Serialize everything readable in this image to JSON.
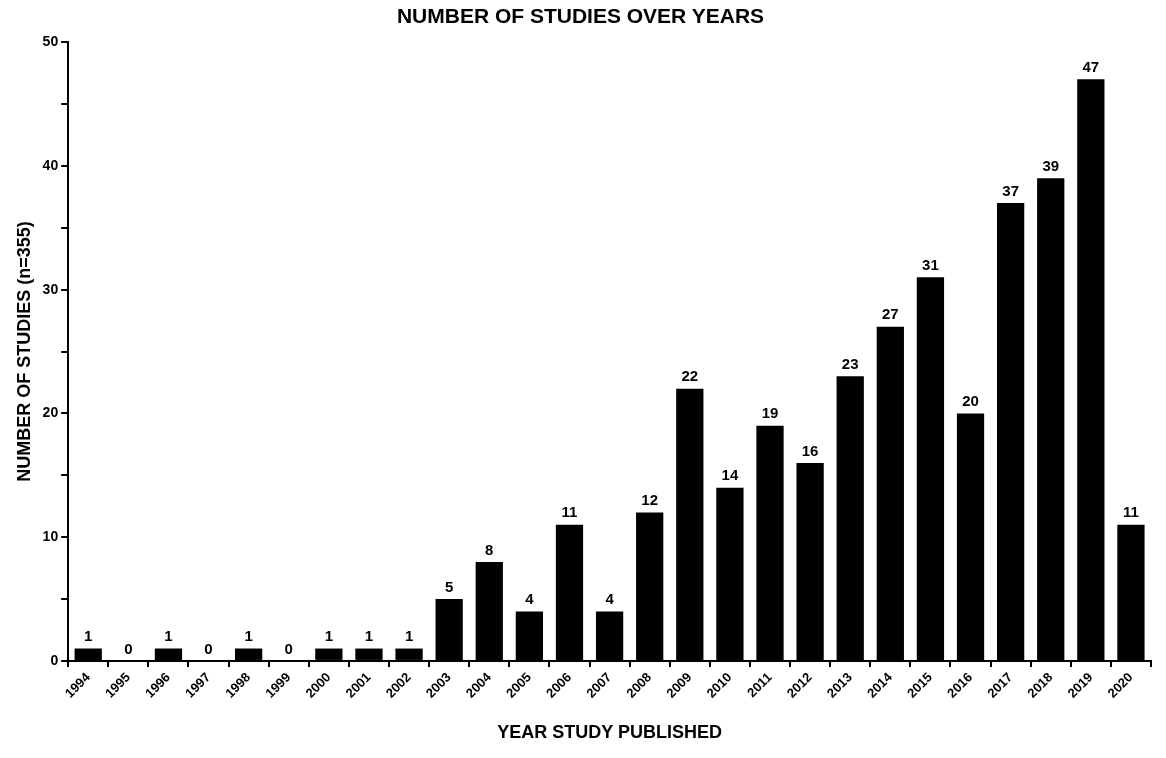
{
  "chart_data": {
    "type": "bar",
    "title": "NUMBER OF STUDIES OVER YEARS",
    "xlabel": "YEAR STUDY PUBLISHED",
    "ylabel": "NUMBER OF STUDIES (n=355)",
    "categories": [
      "1994",
      "1995",
      "1996",
      "1997",
      "1998",
      "1999",
      "2000",
      "2001",
      "2002",
      "2003",
      "2004",
      "2005",
      "2006",
      "2007",
      "2008",
      "2009",
      "2010",
      "2011",
      "2012",
      "2013",
      "2014",
      "2015",
      "2016",
      "2017",
      "2018",
      "2019",
      "2020"
    ],
    "values": [
      1,
      0,
      1,
      0,
      1,
      0,
      1,
      1,
      1,
      5,
      8,
      4,
      11,
      4,
      12,
      22,
      14,
      19,
      16,
      23,
      27,
      31,
      20,
      37,
      39,
      47,
      11
    ],
    "color": "#000000",
    "ylim": [
      0,
      50
    ],
    "yticks": [
      0,
      {
        "value": 5,
        "label": null
      },
      10,
      {
        "value": 15,
        "label": null
      },
      20,
      {
        "value": 25,
        "label": null
      },
      30,
      {
        "value": 35,
        "label": null
      },
      40,
      {
        "value": 45,
        "label": null
      },
      50
    ],
    "grid": false,
    "legend": false,
    "data_labels": true
  }
}
